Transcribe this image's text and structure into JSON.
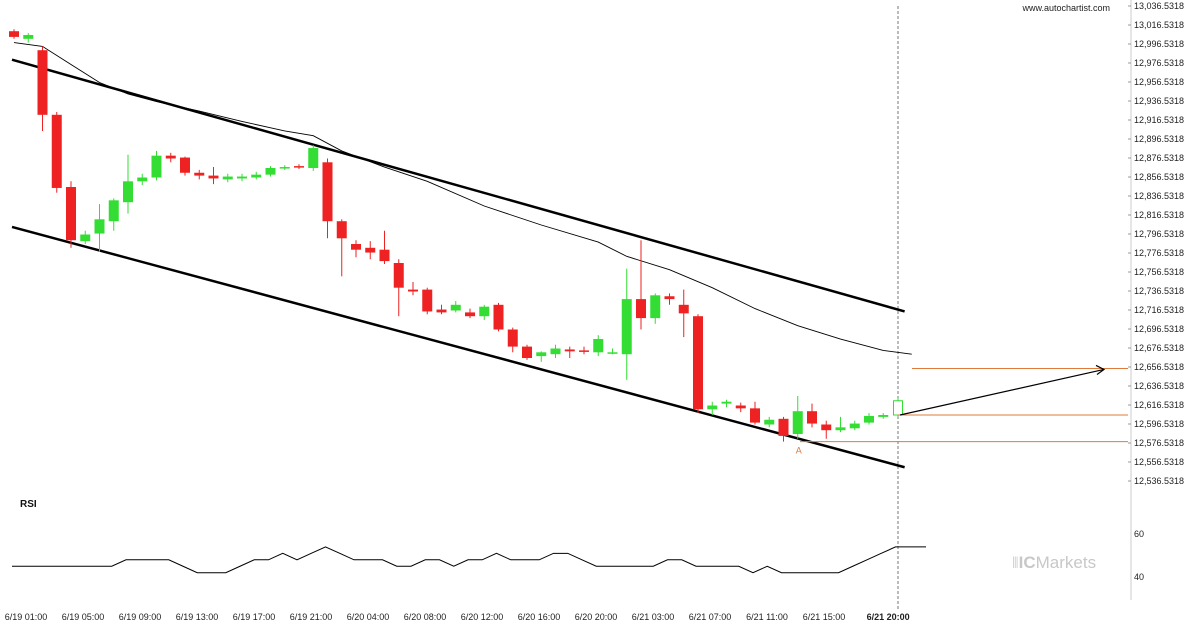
{
  "header": {
    "site": "www.autochartist.com"
  },
  "brand": {
    "text": "ICMarkets",
    "prefix": "IC",
    "suffix": "Markets"
  },
  "colors": {
    "up": "#33dd33",
    "down": "#ee2222",
    "channel": "#000000",
    "ma": "#000000",
    "target": "#e07a3a"
  },
  "chart_data": {
    "type": "candlestick",
    "price_axis": {
      "ticks": [
        "13,036.5318",
        "13,016.5318",
        "12,996.5318",
        "12,976.5318",
        "12,956.5318",
        "12,936.5318",
        "12,916.5318",
        "12,896.5318",
        "12,876.5318",
        "12,856.5318",
        "12,836.5318",
        "12,816.5318",
        "12,796.5318",
        "12,776.5318",
        "12,756.5318",
        "12,736.5318",
        "12,716.5318",
        "12,696.5318",
        "12,676.5318",
        "12,656.5318",
        "12,636.5318",
        "12,616.5318",
        "12,596.5318",
        "12,576.5318",
        "12,556.5318",
        "12,536.5318"
      ],
      "range": [
        12536.5318,
        13036.5318
      ]
    },
    "time_axis": {
      "labels": [
        "6/19 01:00",
        "6/19 05:00",
        "6/19 09:00",
        "6/19 13:00",
        "6/19 17:00",
        "6/19 21:00",
        "6/20 04:00",
        "6/20 08:00",
        "6/20 12:00",
        "6/20 16:00",
        "6/20 20:00",
        "6/21 03:00",
        "6/21 07:00",
        "6/21 11:00",
        "6/21 15:00",
        "6/21 20:00"
      ]
    },
    "candles": [
      {
        "o": 13010,
        "h": 13012,
        "l": 13002,
        "c": 13004
      },
      {
        "o": 13002,
        "h": 13008,
        "l": 12998,
        "c": 13006
      },
      {
        "o": 12990,
        "h": 12994,
        "l": 12905,
        "c": 12922
      },
      {
        "o": 12922,
        "h": 12925,
        "l": 12840,
        "c": 12845
      },
      {
        "o": 12846,
        "h": 12852,
        "l": 12782,
        "c": 12790
      },
      {
        "o": 12789,
        "h": 12800,
        "l": 12786,
        "c": 12796
      },
      {
        "o": 12797,
        "h": 12828,
        "l": 12778,
        "c": 12812
      },
      {
        "o": 12810,
        "h": 12834,
        "l": 12800,
        "c": 12832
      },
      {
        "o": 12830,
        "h": 12880,
        "l": 12818,
        "c": 12852
      },
      {
        "o": 12852,
        "h": 12860,
        "l": 12848,
        "c": 12856
      },
      {
        "o": 12856,
        "h": 12884,
        "l": 12853,
        "c": 12879
      },
      {
        "o": 12879,
        "h": 12882,
        "l": 12872,
        "c": 12876
      },
      {
        "o": 12877,
        "h": 12878,
        "l": 12858,
        "c": 12861
      },
      {
        "o": 12861,
        "h": 12864,
        "l": 12854,
        "c": 12858
      },
      {
        "o": 12858,
        "h": 12867,
        "l": 12849,
        "c": 12855
      },
      {
        "o": 12854,
        "h": 12860,
        "l": 12851,
        "c": 12857
      },
      {
        "o": 12855,
        "h": 12860,
        "l": 12852,
        "c": 12857
      },
      {
        "o": 12856,
        "h": 12862,
        "l": 12854,
        "c": 12859
      },
      {
        "o": 12859,
        "h": 12868,
        "l": 12857,
        "c": 12866
      },
      {
        "o": 12867,
        "h": 12869,
        "l": 12864,
        "c": 12867
      },
      {
        "o": 12868,
        "h": 12870,
        "l": 12865,
        "c": 12867
      },
      {
        "o": 12866,
        "h": 12890,
        "l": 12863,
        "c": 12887
      },
      {
        "o": 12872,
        "h": 12876,
        "l": 12792,
        "c": 12810
      },
      {
        "o": 12810,
        "h": 12812,
        "l": 12752,
        "c": 12792
      },
      {
        "o": 12786,
        "h": 12790,
        "l": 12772,
        "c": 12780
      },
      {
        "o": 12782,
        "h": 12789,
        "l": 12770,
        "c": 12777
      },
      {
        "o": 12780,
        "h": 12800,
        "l": 12765,
        "c": 12768
      },
      {
        "o": 12766,
        "h": 12770,
        "l": 12710,
        "c": 12740
      },
      {
        "o": 12738,
        "h": 12746,
        "l": 12732,
        "c": 12736
      },
      {
        "o": 12738,
        "h": 12740,
        "l": 12712,
        "c": 12715
      },
      {
        "o": 12717,
        "h": 12722,
        "l": 12712,
        "c": 12714
      },
      {
        "o": 12716,
        "h": 12726,
        "l": 12714,
        "c": 12722
      },
      {
        "o": 12714,
        "h": 12718,
        "l": 12708,
        "c": 12710
      },
      {
        "o": 12710,
        "h": 12722,
        "l": 12706,
        "c": 12720
      },
      {
        "o": 12722,
        "h": 12724,
        "l": 12694,
        "c": 12696
      },
      {
        "o": 12696,
        "h": 12698,
        "l": 12672,
        "c": 12678
      },
      {
        "o": 12678,
        "h": 12680,
        "l": 12664,
        "c": 12666
      },
      {
        "o": 12668,
        "h": 12673,
        "l": 12662,
        "c": 12672
      },
      {
        "o": 12670,
        "h": 12680,
        "l": 12666,
        "c": 12676
      },
      {
        "o": 12675,
        "h": 12678,
        "l": 12666,
        "c": 12673
      },
      {
        "o": 12674,
        "h": 12678,
        "l": 12670,
        "c": 12673
      },
      {
        "o": 12672,
        "h": 12690,
        "l": 12668,
        "c": 12686
      },
      {
        "o": 12672,
        "h": 12676,
        "l": 12670,
        "c": 12672
      },
      {
        "o": 12670,
        "h": 12760,
        "l": 12643,
        "c": 12728
      },
      {
        "o": 12728,
        "h": 12790,
        "l": 12696,
        "c": 12708
      },
      {
        "o": 12708,
        "h": 12734,
        "l": 12702,
        "c": 12732
      },
      {
        "o": 12731,
        "h": 12734,
        "l": 12722,
        "c": 12728
      },
      {
        "o": 12722,
        "h": 12738,
        "l": 12688,
        "c": 12713
      },
      {
        "o": 12710,
        "h": 12712,
        "l": 12608,
        "c": 12612
      },
      {
        "o": 12612,
        "h": 12620,
        "l": 12606,
        "c": 12616
      },
      {
        "o": 12618,
        "h": 12622,
        "l": 12614,
        "c": 12620
      },
      {
        "o": 12616,
        "h": 12619,
        "l": 12609,
        "c": 12613
      },
      {
        "o": 12613,
        "h": 12620,
        "l": 12596,
        "c": 12598
      },
      {
        "o": 12596,
        "h": 12604,
        "l": 12593,
        "c": 12601
      },
      {
        "o": 12602,
        "h": 12604,
        "l": 12578,
        "c": 12584
      },
      {
        "o": 12586,
        "h": 12626,
        "l": 12581,
        "c": 12610
      },
      {
        "o": 12610,
        "h": 12618,
        "l": 12593,
        "c": 12597
      },
      {
        "o": 12596,
        "h": 12600,
        "l": 12581,
        "c": 12590
      },
      {
        "o": 12590,
        "h": 12604,
        "l": 12588,
        "c": 12593
      },
      {
        "o": 12592,
        "h": 12600,
        "l": 12590,
        "c": 12597
      },
      {
        "o": 12598,
        "h": 12608,
        "l": 12596,
        "c": 12605
      },
      {
        "o": 12604,
        "h": 12608,
        "l": 12602,
        "c": 12606
      }
    ],
    "forecast_candle": {
      "o": 12606,
      "h": 12624,
      "l": 12604,
      "c": 12621
    },
    "moving_average": [
      {
        "i": 0,
        "v": 12998
      },
      {
        "i": 2,
        "v": 12994
      },
      {
        "i": 4,
        "v": 12975
      },
      {
        "i": 6,
        "v": 12956
      },
      {
        "i": 8,
        "v": 12944
      },
      {
        "i": 10,
        "v": 12936
      },
      {
        "i": 13,
        "v": 12926
      },
      {
        "i": 16,
        "v": 12915
      },
      {
        "i": 19,
        "v": 12905
      },
      {
        "i": 21,
        "v": 12900
      },
      {
        "i": 23,
        "v": 12884
      },
      {
        "i": 26,
        "v": 12867
      },
      {
        "i": 29,
        "v": 12852
      },
      {
        "i": 33,
        "v": 12826
      },
      {
        "i": 37,
        "v": 12806
      },
      {
        "i": 41,
        "v": 12788
      },
      {
        "i": 43,
        "v": 12773
      },
      {
        "i": 46,
        "v": 12759
      },
      {
        "i": 49,
        "v": 12740
      },
      {
        "i": 52,
        "v": 12718
      },
      {
        "i": 55,
        "v": 12700
      },
      {
        "i": 58,
        "v": 12686
      },
      {
        "i": 61,
        "v": 12674
      },
      {
        "i": 63,
        "v": 12670
      }
    ],
    "channel_upper": [
      {
        "i": 0,
        "v": 12980
      },
      {
        "i": 62.5,
        "v": 12715
      }
    ],
    "channel_lower": [
      {
        "i": 0,
        "v": 12804
      },
      {
        "i": 62.5,
        "v": 12551
      }
    ],
    "target": {
      "price": 12655,
      "current": 12606,
      "support": 12578
    },
    "annotation": {
      "label": "A",
      "i": 55
    },
    "rsi": {
      "label": "RSI",
      "ticks": [
        "60",
        "40"
      ],
      "range": [
        30,
        70
      ],
      "values": [
        45,
        45,
        45,
        45,
        45,
        45,
        45,
        45,
        48,
        48,
        48,
        48,
        45,
        42,
        42,
        42,
        45,
        48,
        48,
        51,
        48,
        51,
        54,
        51,
        48,
        48,
        48,
        45,
        45,
        48,
        48,
        45,
        48,
        48,
        51,
        48,
        48,
        48,
        51,
        51,
        48,
        45,
        45,
        45,
        45,
        45,
        48,
        48,
        45,
        45,
        45,
        45,
        42,
        45,
        42,
        42,
        42,
        42,
        42,
        45,
        48,
        51,
        54,
        54
      ]
    }
  }
}
